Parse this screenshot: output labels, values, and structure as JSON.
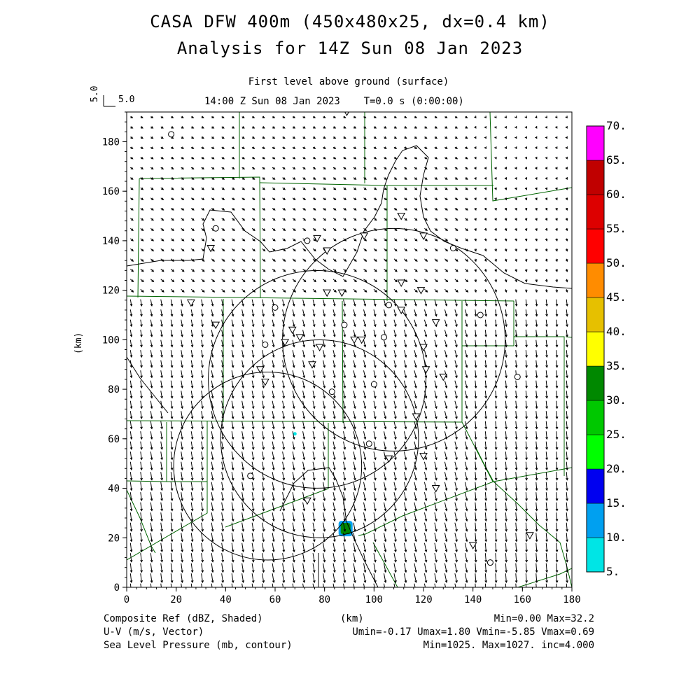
{
  "header": {
    "title_line1": "CASA DFW 400m (450x480x25, dx=0.4 km)",
    "title_line2": "Analysis for 14Z Sun 08 Jan 2023",
    "level": "First level above ground (surface)",
    "time": "14:00 Z Sun 08 Jan 2023    T=0.0 s (0:00:00)",
    "ref_vector_vertical": "5.0",
    "ref_vector_horizontal": "5.0"
  },
  "footer": {
    "line1_left": "Composite Ref (dBZ, Shaded)",
    "line1_center": "(km)",
    "line1_right": "Min=0.00 Max=32.2",
    "line2_left": "U-V (m/s, Vector)",
    "line2_right": "Umin=-0.17 Umax=1.80 Vmin=-5.85 Vmax=0.69",
    "line3_left": "Sea Level Pressure (mb, contour)",
    "line3_right": "Min=1025. Max=1027. inc=4.000"
  },
  "chart_data": {
    "type": "heatmap",
    "xlabel": "(km)",
    "ylabel": "(km)",
    "xlim": [
      0,
      180
    ],
    "ylim": [
      0,
      192
    ],
    "x_ticks": [
      0,
      20,
      40,
      60,
      80,
      100,
      120,
      140,
      160,
      180
    ],
    "y_ticks": [
      0,
      20,
      40,
      60,
      80,
      100,
      120,
      140,
      160,
      180
    ],
    "colorbar": {
      "levels": [
        "5.",
        "10.",
        "15.",
        "20.",
        "25.",
        "30.",
        "35.",
        "40.",
        "45.",
        "50.",
        "55.",
        "60.",
        "65.",
        "70."
      ],
      "colors": [
        "#00e5e5",
        "#00a0f0",
        "#0000f0",
        "#00ff00",
        "#00c800",
        "#008800",
        "#ffff00",
        "#e6c000",
        "#ff8c00",
        "#ff0000",
        "#dd0000",
        "#c00000",
        "#ff00ff"
      ]
    },
    "radar_circles": [
      {
        "cx": 77,
        "cy": 84,
        "r": 44
      },
      {
        "cx": 108,
        "cy": 100,
        "r": 45
      },
      {
        "cx": 57,
        "cy": 49,
        "r": 38
      },
      {
        "cx": 78,
        "cy": 60,
        "r": 40
      }
    ],
    "echoes": [
      {
        "x": 88.5,
        "y": 24,
        "dbz": 32.2
      },
      {
        "x": 68,
        "y": 62,
        "dbz": 5
      }
    ],
    "wind_field": {
      "umin": -0.17,
      "umax": 1.8,
      "vmin": -5.85,
      "vmax": 0.69,
      "spacing_km": 4.1
    },
    "station_circles": [
      [
        18,
        183
      ],
      [
        36,
        145
      ],
      [
        73,
        140
      ],
      [
        60,
        113
      ],
      [
        56,
        98
      ],
      [
        88,
        106
      ],
      [
        104,
        101
      ],
      [
        100,
        82
      ],
      [
        83,
        79
      ],
      [
        106,
        114
      ],
      [
        132,
        137
      ],
      [
        143,
        110
      ],
      [
        158,
        85
      ],
      [
        98,
        58
      ],
      [
        50,
        45
      ],
      [
        147,
        10
      ]
    ],
    "station_triangles": [
      [
        34,
        137
      ],
      [
        77,
        141
      ],
      [
        81,
        136
      ],
      [
        120,
        142
      ],
      [
        111,
        150
      ],
      [
        96,
        142
      ],
      [
        54,
        88
      ],
      [
        56,
        83
      ],
      [
        67,
        104
      ],
      [
        70,
        101
      ],
      [
        64,
        99
      ],
      [
        78,
        97
      ],
      [
        75,
        90
      ],
      [
        92,
        100
      ],
      [
        95,
        100
      ],
      [
        81,
        119
      ],
      [
        87,
        119
      ],
      [
        111,
        123
      ],
      [
        119,
        120
      ],
      [
        111,
        112
      ],
      [
        125,
        107
      ],
      [
        120,
        97
      ],
      [
        121,
        88
      ],
      [
        128,
        85
      ],
      [
        117,
        69
      ],
      [
        120,
        53
      ],
      [
        106,
        52
      ],
      [
        125,
        40
      ],
      [
        73,
        35
      ],
      [
        89,
        192
      ],
      [
        140,
        17
      ],
      [
        163,
        21
      ],
      [
        26,
        115
      ],
      [
        36,
        106
      ]
    ]
  }
}
